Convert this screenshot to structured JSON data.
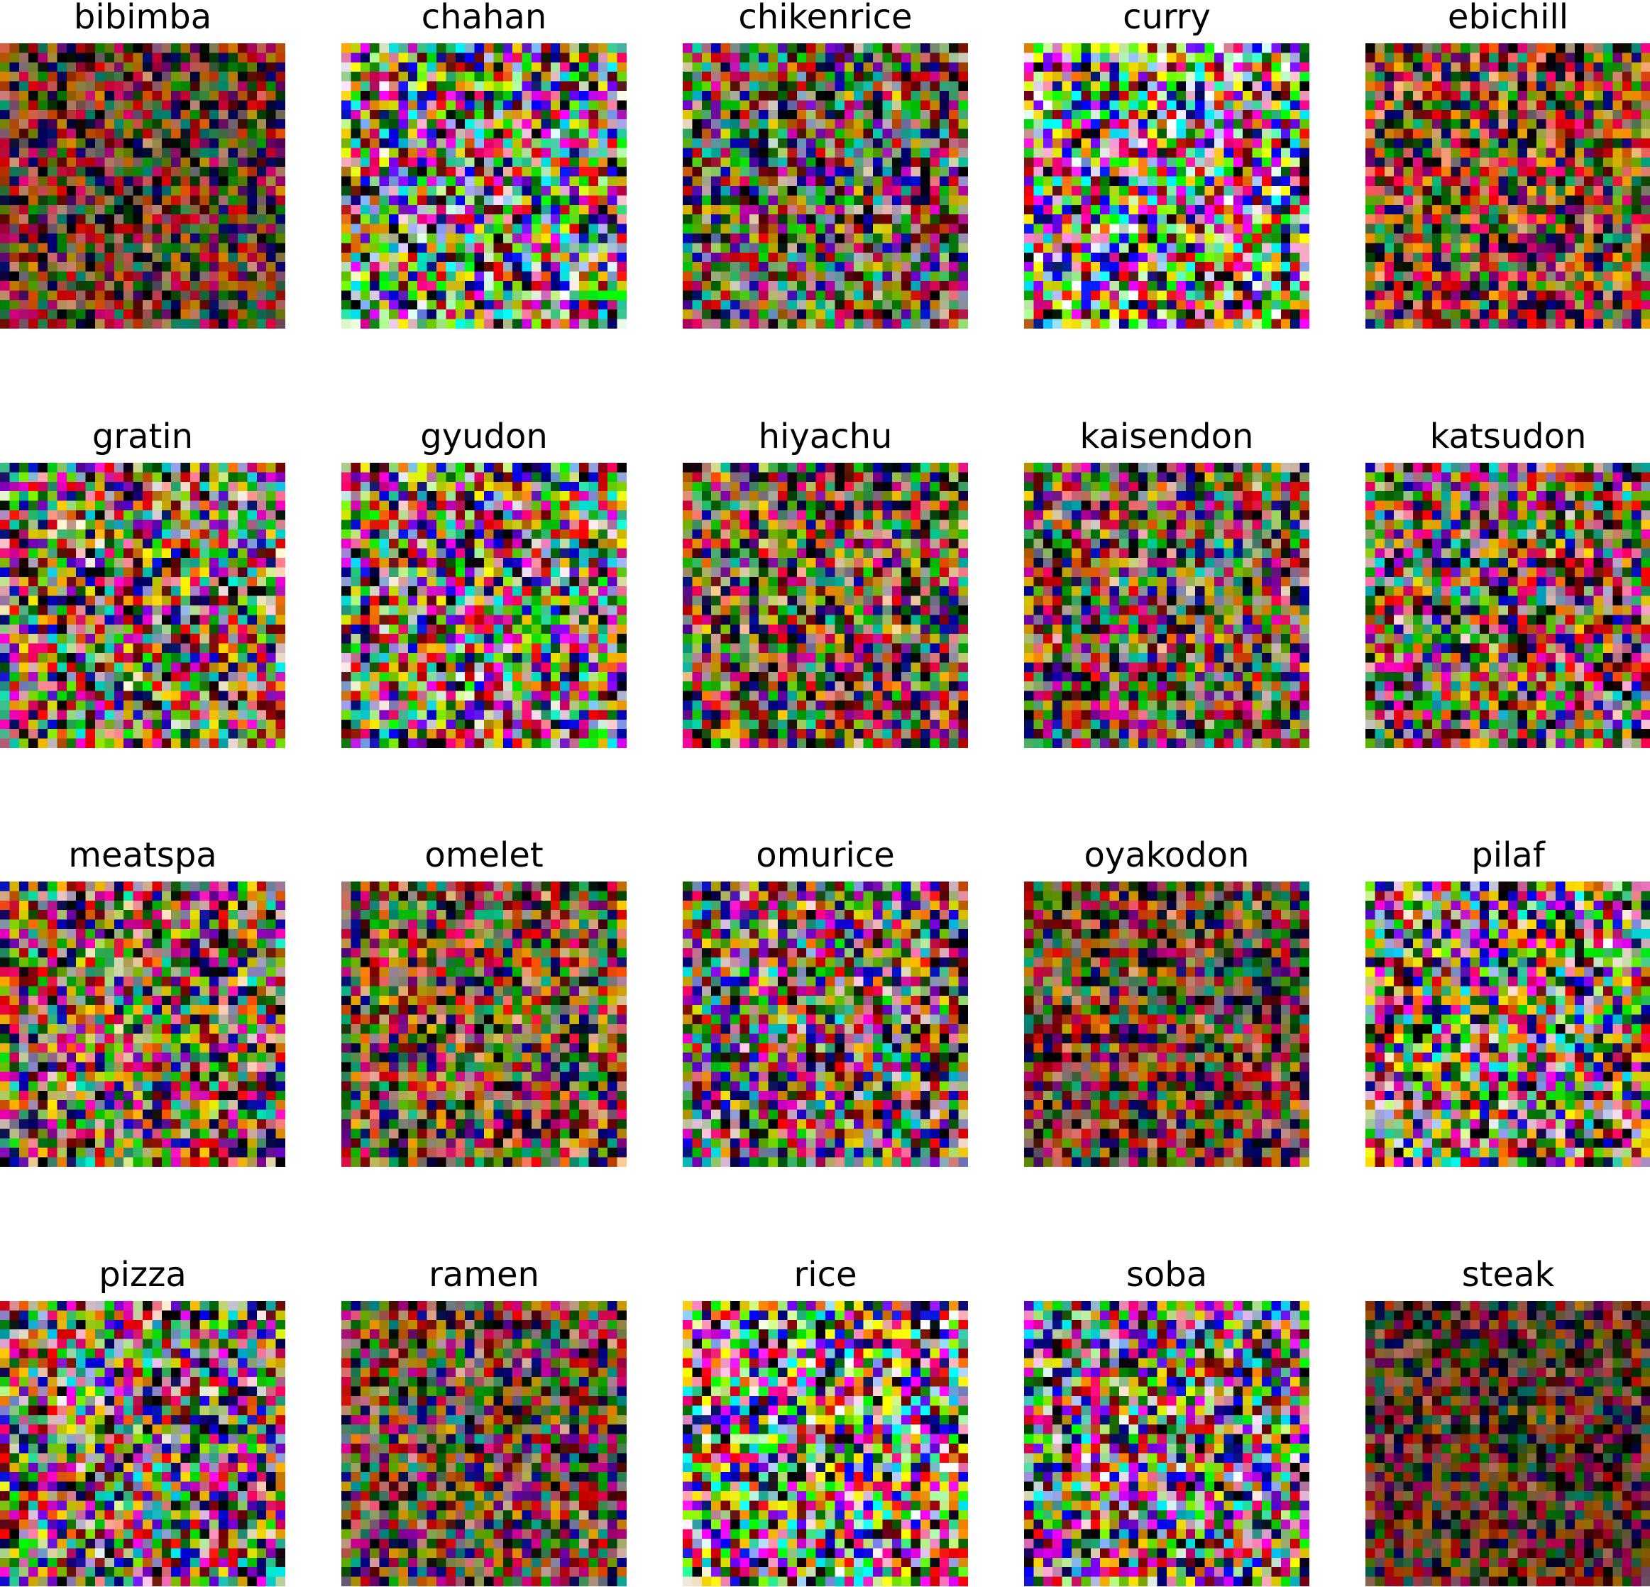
{
  "figure": {
    "panels": [
      {
        "title": "bibimba",
        "tone": [
          0.82,
          0.55,
          0.45
        ]
      },
      {
        "title": "chahan",
        "tone": [
          1.0,
          1.0,
          1.0
        ]
      },
      {
        "title": "chikenrice",
        "tone": [
          0.85,
          0.8,
          0.75
        ]
      },
      {
        "title": "curry",
        "tone": [
          1.1,
          1.12,
          1.15
        ]
      },
      {
        "title": "ebichill",
        "tone": [
          1.0,
          0.7,
          0.5
        ]
      },
      {
        "title": "gratin",
        "tone": [
          1.0,
          0.9,
          0.85
        ]
      },
      {
        "title": "gyudon",
        "tone": [
          1.0,
          0.95,
          0.95
        ]
      },
      {
        "title": "hiyachu",
        "tone": [
          0.95,
          0.8,
          0.65
        ]
      },
      {
        "title": "kaisendon",
        "tone": [
          0.92,
          0.78,
          0.7
        ]
      },
      {
        "title": "katsudon",
        "tone": [
          1.0,
          0.8,
          0.8
        ]
      },
      {
        "title": "meatspa",
        "tone": [
          1.0,
          0.85,
          0.75
        ]
      },
      {
        "title": "omelet",
        "tone": [
          0.95,
          0.72,
          0.55
        ]
      },
      {
        "title": "omurice",
        "tone": [
          0.95,
          0.85,
          0.85
        ]
      },
      {
        "title": "oyakodon",
        "tone": [
          0.85,
          0.62,
          0.5
        ]
      },
      {
        "title": "pilaf",
        "tone": [
          1.05,
          0.95,
          0.95
        ]
      },
      {
        "title": "pizza",
        "tone": [
          1.0,
          0.9,
          0.9
        ]
      },
      {
        "title": "ramen",
        "tone": [
          0.85,
          0.65,
          0.6
        ]
      },
      {
        "title": "rice",
        "tone": [
          1.1,
          1.1,
          1.1
        ]
      },
      {
        "title": "soba",
        "tone": [
          1.0,
          0.95,
          1.0
        ]
      },
      {
        "title": "steak",
        "tone": [
          0.7,
          0.45,
          0.38
        ]
      }
    ],
    "pixel_grid": 30,
    "columns": 5,
    "palette": [
      "#ff0000",
      "#00ff00",
      "#0000ff",
      "#ffff00",
      "#ff00ff",
      "#00ffff",
      "#ffffff",
      "#000000",
      "#ff8000",
      "#8000ff",
      "#80ff00",
      "#ff0080",
      "#008000",
      "#800000",
      "#000080",
      "#ffa0c0",
      "#c0ffa0",
      "#a0c0ff",
      "#ffd000",
      "#40e0a0"
    ]
  }
}
